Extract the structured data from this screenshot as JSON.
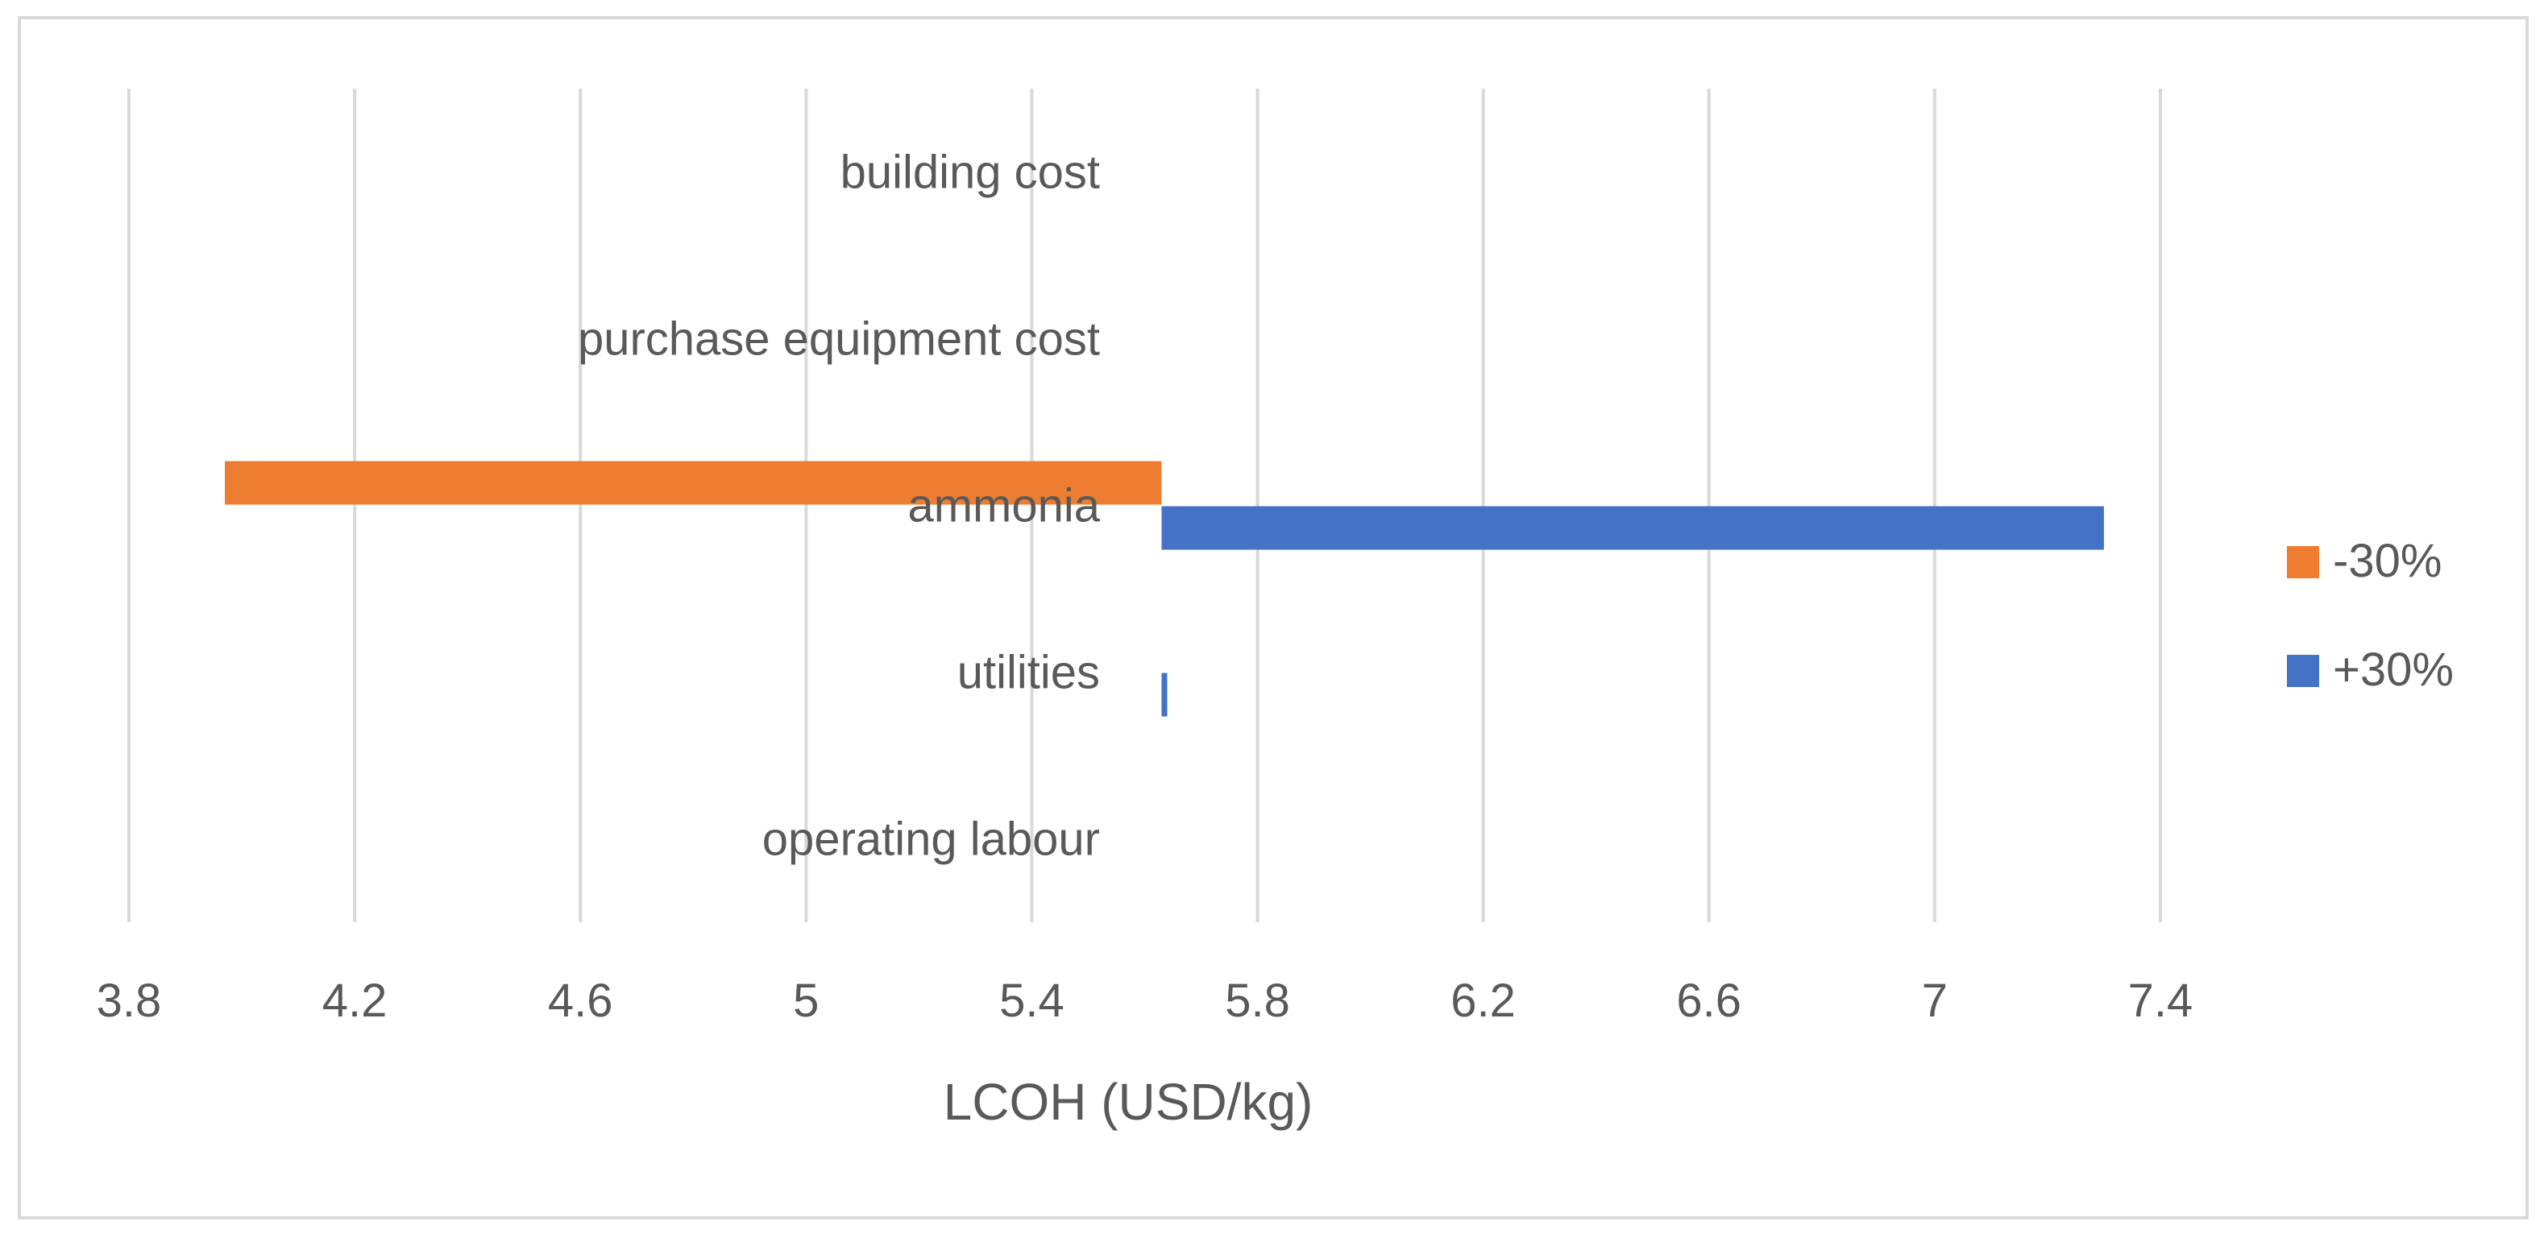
{
  "chart_data": {
    "type": "bar",
    "orientation": "horizontal",
    "title": "",
    "xlabel": "LCOH (USD/kg)",
    "ylabel": "",
    "xlim": [
      3.8,
      7.6
    ],
    "xticks": [
      3.8,
      4.2,
      4.6,
      5,
      5.4,
      5.8,
      6.2,
      6.6,
      7,
      7.4
    ],
    "xtick_labels": [
      "3.8",
      "4.2",
      "4.6",
      "5",
      "5.4",
      "5.8",
      "6.2",
      "6.6",
      "7",
      "7.4"
    ],
    "grid": true,
    "legend_position": "right",
    "base_value": 5.63,
    "categories": [
      "building cost",
      "purchase equipment cost",
      "ammonia",
      "utilities",
      "operating labour"
    ],
    "series": [
      {
        "name": "-30%",
        "color": "#ED7D31",
        "values": [
          5.63,
          5.63,
          3.97,
          5.63,
          5.63
        ]
      },
      {
        "name": "+30%",
        "color": "#4472C4",
        "values": [
          5.63,
          5.63,
          7.3,
          5.64,
          5.63
        ]
      }
    ]
  }
}
